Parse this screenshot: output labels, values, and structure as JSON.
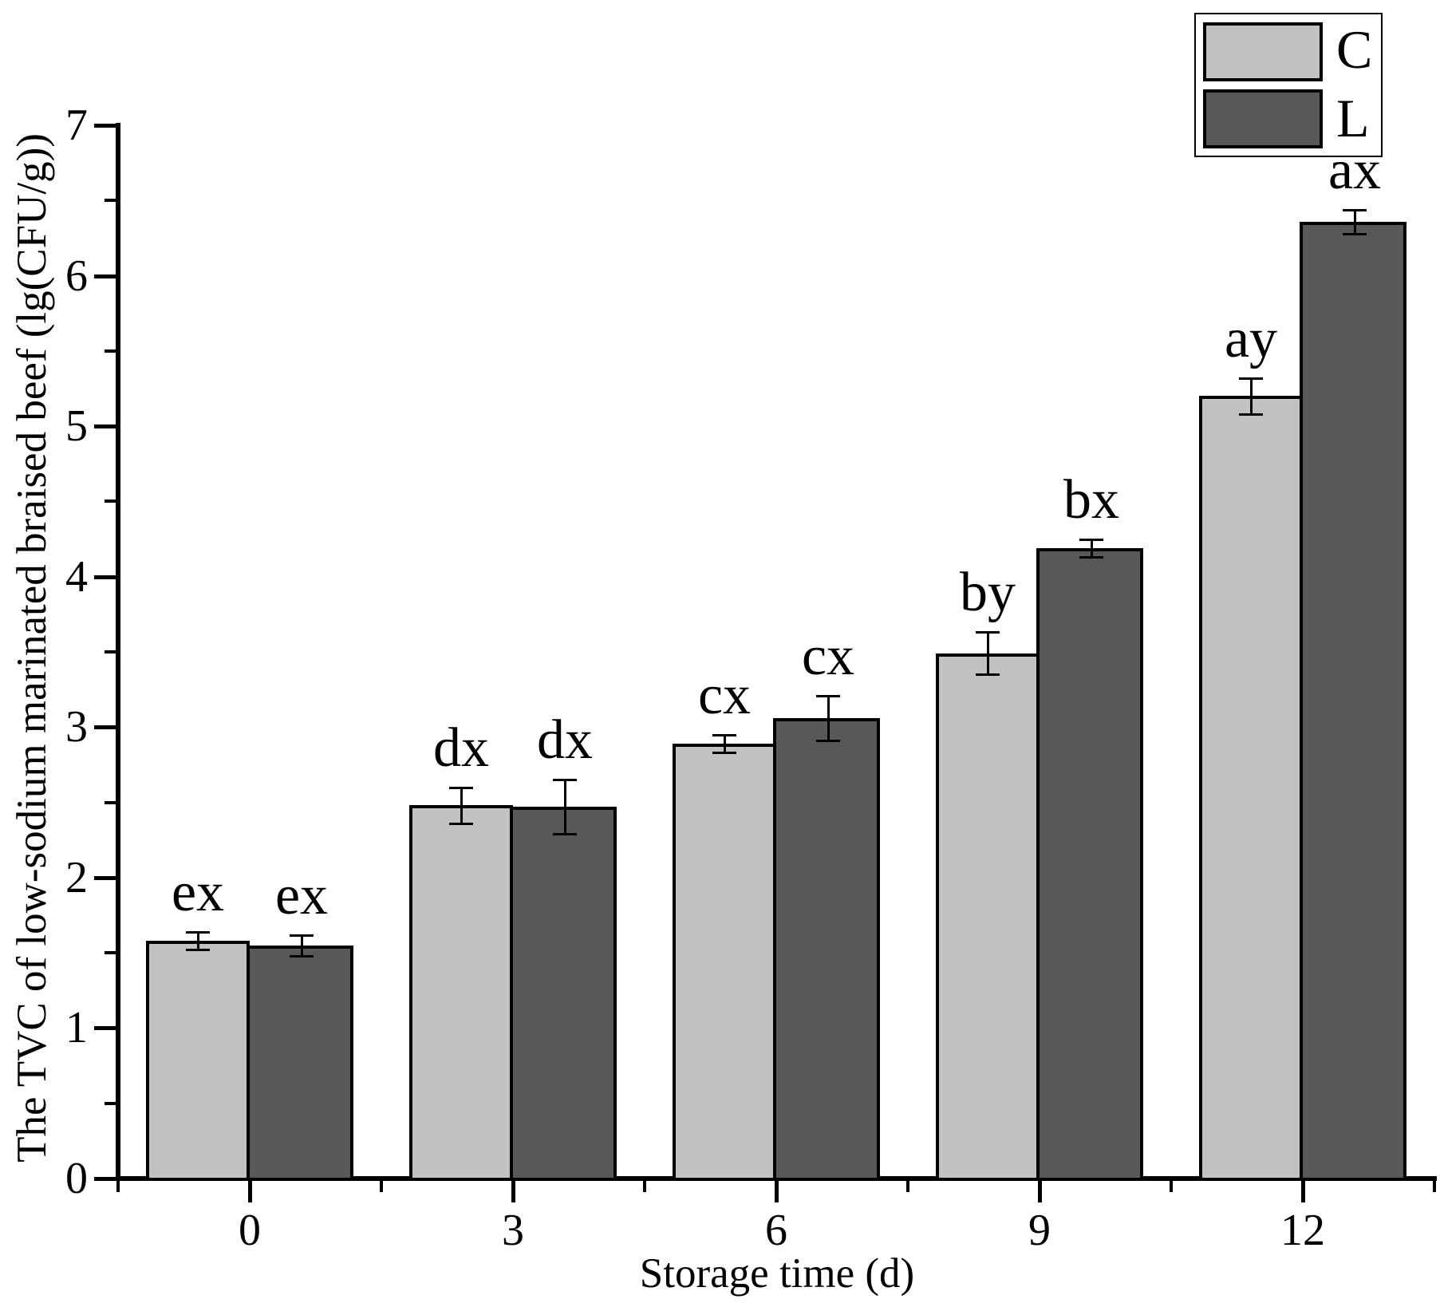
{
  "chart_data": {
    "type": "bar",
    "title": "",
    "xlabel": "Storage time (d)",
    "ylabel": "The TVC of low-sodium marinated braised beef (lg(CFU/g))",
    "categories": [
      "0",
      "3",
      "6",
      "9",
      "12"
    ],
    "series": [
      {
        "name": "C",
        "color": "#c2c2c2",
        "values": [
          1.58,
          2.48,
          2.89,
          3.49,
          5.2
        ],
        "errors": [
          0.06,
          0.12,
          0.06,
          0.14,
          0.12
        ],
        "point_labels": [
          "ex",
          "dx",
          "cx",
          "by",
          "ay"
        ]
      },
      {
        "name": "L",
        "color": "#585858",
        "values": [
          1.55,
          2.47,
          3.06,
          4.19,
          6.36
        ],
        "errors": [
          0.07,
          0.18,
          0.15,
          0.06,
          0.08
        ],
        "point_labels": [
          "ex",
          "dx",
          "cx",
          "bx",
          "ax"
        ]
      }
    ],
    "ylim": [
      0,
      7
    ],
    "y_major_ticks": [
      0,
      1,
      2,
      3,
      4,
      5,
      6,
      7
    ],
    "y_minor_tick_interval": 0.5,
    "x_has_minor_ticks": true,
    "grid": false,
    "legend_position": "top-right",
    "bar_edge_color": "#000000",
    "error_bar_color": "#000000",
    "background_color": "#ffffff"
  },
  "legend": {
    "entries": [
      {
        "label": "C",
        "color": "#c2c2c2"
      },
      {
        "label": "L",
        "color": "#585858"
      }
    ]
  }
}
